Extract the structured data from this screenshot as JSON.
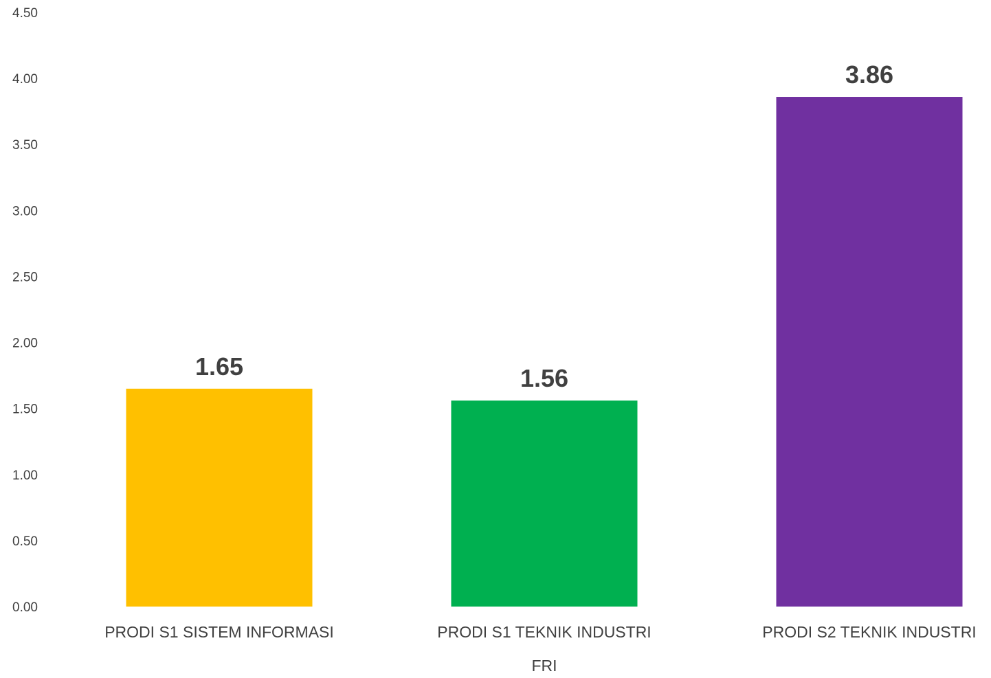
{
  "chart_data": {
    "type": "bar",
    "title": "",
    "xlabel": "FRI",
    "ylabel": "",
    "categories": [
      "PRODI S1 SISTEM INFORMASI",
      "PRODI S1 TEKNIK INDUSTRI",
      "PRODI S2 TEKNIK INDUSTRI"
    ],
    "values": [
      1.65,
      1.56,
      3.86
    ],
    "value_labels": [
      "1.65",
      "1.56",
      "3.86"
    ],
    "colors": [
      "#FFC000",
      "#00B050",
      "#7030A0"
    ],
    "ylim": [
      0,
      4.5
    ],
    "yticks": [
      "0.00",
      "0.50",
      "1.00",
      "1.50",
      "2.00",
      "2.50",
      "3.00",
      "3.50",
      "4.00",
      "4.50"
    ],
    "grid": false,
    "legend": "none"
  }
}
